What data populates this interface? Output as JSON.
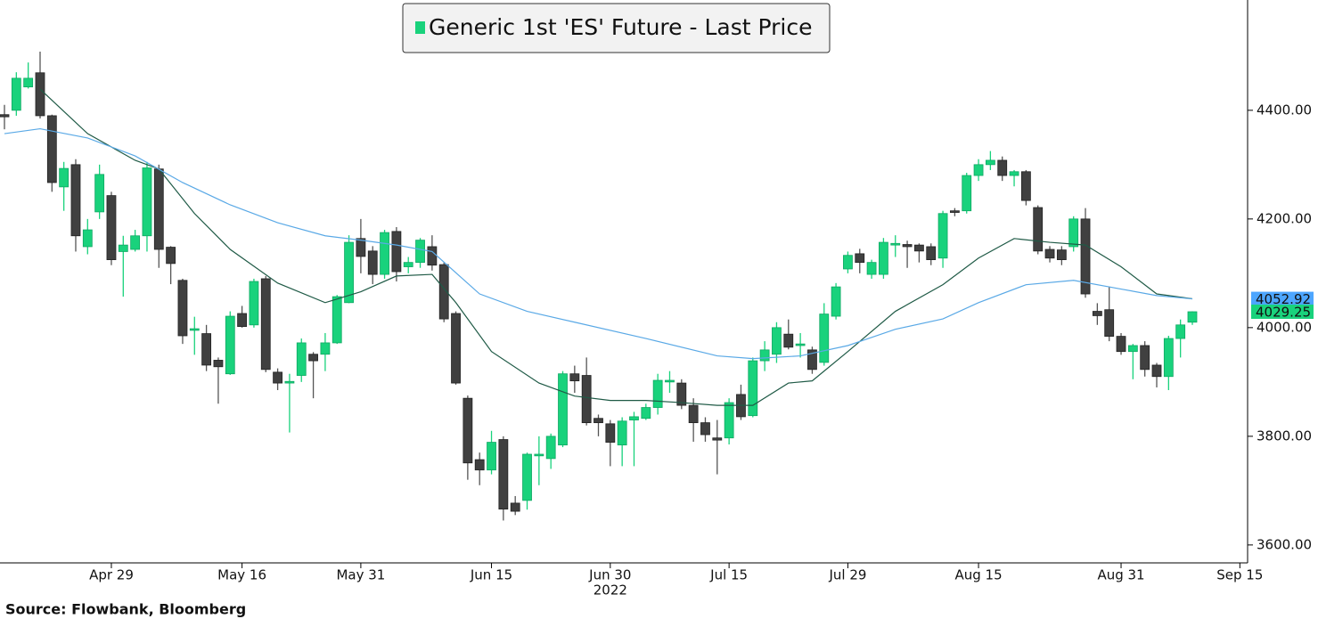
{
  "chart_data": {
    "type": "candlestick",
    "legend": "Generic 1st 'ES' Future - Last Price",
    "source": "Source: Flowbank, Bloomberg",
    "year_label": "2022",
    "up_color": "#19d27c",
    "down_color": "#404040",
    "x": [
      "2022-04-18",
      "2022-04-19",
      "2022-04-20",
      "2022-04-21",
      "2022-04-22",
      "2022-04-25",
      "2022-04-26",
      "2022-04-27",
      "2022-04-28",
      "2022-04-29",
      "2022-05-02",
      "2022-05-03",
      "2022-05-04",
      "2022-05-05",
      "2022-05-06",
      "2022-05-09",
      "2022-05-10",
      "2022-05-11",
      "2022-05-12",
      "2022-05-13",
      "2022-05-16",
      "2022-05-17",
      "2022-05-18",
      "2022-05-19",
      "2022-05-20",
      "2022-05-23",
      "2022-05-24",
      "2022-05-25",
      "2022-05-26",
      "2022-05-27",
      "2022-05-31",
      "2022-06-01",
      "2022-06-02",
      "2022-06-03",
      "2022-06-06",
      "2022-06-07",
      "2022-06-08",
      "2022-06-09",
      "2022-06-10",
      "2022-06-13",
      "2022-06-14",
      "2022-06-15",
      "2022-06-16",
      "2022-06-17",
      "2022-06-21",
      "2022-06-22",
      "2022-06-23",
      "2022-06-24",
      "2022-06-27",
      "2022-06-28",
      "2022-06-29",
      "2022-06-30",
      "2022-07-01",
      "2022-07-05",
      "2022-07-06",
      "2022-07-07",
      "2022-07-08",
      "2022-07-11",
      "2022-07-12",
      "2022-07-13",
      "2022-07-14",
      "2022-07-15",
      "2022-07-18",
      "2022-07-19",
      "2022-07-20",
      "2022-07-21",
      "2022-07-22",
      "2022-07-25",
      "2022-07-26",
      "2022-07-27",
      "2022-07-28",
      "2022-07-29",
      "2022-08-01",
      "2022-08-02",
      "2022-08-03",
      "2022-08-04",
      "2022-08-05",
      "2022-08-08",
      "2022-08-09",
      "2022-08-10",
      "2022-08-11",
      "2022-08-12",
      "2022-08-15",
      "2022-08-16",
      "2022-08-17",
      "2022-08-18",
      "2022-08-19",
      "2022-08-22",
      "2022-08-23",
      "2022-08-24",
      "2022-08-25",
      "2022-08-26",
      "2022-08-29",
      "2022-08-30",
      "2022-08-31",
      "2022-09-01",
      "2022-09-02",
      "2022-09-06",
      "2022-09-07",
      "2022-09-08",
      "2022-09-09"
    ],
    "open": [
      4392,
      4400,
      4443,
      4469,
      4390,
      4259,
      4300,
      4149,
      4213,
      4243,
      4140,
      4144,
      4169,
      4292,
      4148,
      4087,
      3995,
      3989,
      3940,
      3915,
      4026,
      4005,
      4090,
      3918,
      3898,
      3912,
      3951,
      3951,
      3972,
      4046,
      4164,
      4141,
      4098,
      4177,
      4112,
      4120,
      4149,
      4116,
      4026,
      3870,
      3757,
      3738,
      3794,
      3677,
      3682,
      3764,
      3759,
      3784,
      3915,
      3912,
      3833,
      3823,
      3784,
      3830,
      3833,
      3853,
      3900,
      3898,
      3857,
      3825,
      3797,
      3797,
      3877,
      3838,
      3939,
      3951,
      3988,
      3967,
      3959,
      3936,
      4021,
      4108,
      4136,
      4098,
      4098,
      4152,
      4153,
      4152,
      4149,
      4128,
      4215,
      4215,
      4280,
      4300,
      4308,
      4280,
      4287,
      4221,
      4144,
      4143,
      4149,
      4200,
      4030,
      4033,
      3984,
      3956,
      3967,
      3931,
      3910,
      3980,
      4010
    ],
    "high": [
      4410,
      4470,
      4488,
      4508,
      4392,
      4305,
      4310,
      4200,
      4300,
      4250,
      4169,
      4180,
      4305,
      4300,
      4150,
      4090,
      4020,
      4005,
      3945,
      4030,
      4040,
      4090,
      4095,
      3925,
      3915,
      3980,
      3955,
      3990,
      4060,
      4170,
      4200,
      4150,
      4180,
      4185,
      4130,
      4165,
      4170,
      4120,
      4030,
      3875,
      3770,
      3810,
      3800,
      3690,
      3770,
      3800,
      3805,
      3920,
      3930,
      3945,
      3840,
      3830,
      3835,
      3845,
      3860,
      3915,
      3920,
      3905,
      3870,
      3835,
      3830,
      3870,
      3895,
      3945,
      3975,
      4010,
      4015,
      3990,
      3965,
      4045,
      4082,
      4140,
      4145,
      4125,
      4165,
      4170,
      4160,
      4155,
      4155,
      4215,
      4220,
      4285,
      4310,
      4325,
      4315,
      4290,
      4290,
      4225,
      4150,
      4150,
      4205,
      4220,
      4045,
      4075,
      3990,
      3970,
      3975,
      3935,
      3985,
      4015,
      4030
    ],
    "low": [
      4365,
      4390,
      4440,
      4385,
      4250,
      4215,
      4140,
      4135,
      4200,
      4115,
      4057,
      4140,
      4140,
      4110,
      4080,
      3970,
      3950,
      3920,
      3860,
      3913,
      4000,
      4000,
      3918,
      3885,
      3807,
      3900,
      3870,
      3920,
      3970,
      4045,
      4100,
      4080,
      4090,
      4085,
      4100,
      4110,
      4105,
      4010,
      3895,
      3720,
      3710,
      3730,
      3645,
      3655,
      3665,
      3710,
      3740,
      3780,
      3880,
      3820,
      3800,
      3745,
      3745,
      3745,
      3830,
      3840,
      3880,
      3850,
      3790,
      3790,
      3730,
      3785,
      3830,
      3835,
      3920,
      3935,
      3960,
      3945,
      3915,
      3930,
      4015,
      4100,
      4100,
      4090,
      4090,
      4130,
      4110,
      4120,
      4115,
      4110,
      4205,
      4210,
      4270,
      4290,
      4270,
      4260,
      4225,
      4135,
      4120,
      4115,
      4140,
      4055,
      4005,
      3975,
      3950,
      3905,
      3910,
      3890,
      3885,
      3945,
      4005
    ],
    "close": [
      4388,
      4459,
      4459,
      4390,
      4267,
      4293,
      4169,
      4180,
      4282,
      4125,
      4152,
      4169,
      4294,
      4144,
      4118,
      3985,
      3998,
      3931,
      3928,
      4021,
      4002,
      4085,
      3923,
      3898,
      3901,
      3972,
      3939,
      3972,
      4057,
      4157,
      4131,
      4098,
      4175,
      4103,
      4120,
      4161,
      4115,
      4016,
      3898,
      3751,
      3738,
      3789,
      3666,
      3662,
      3767,
      3767,
      3800,
      3915,
      3902,
      3825,
      3825,
      3789,
      3828,
      3836,
      3853,
      3903,
      3903,
      3857,
      3825,
      3803,
      3793,
      3862,
      3836,
      3939,
      3959,
      4000,
      3964,
      3970,
      3923,
      4025,
      4075,
      4133,
      4120,
      4120,
      4157,
      4155,
      4149,
      4141,
      4125,
      4210,
      4212,
      4280,
      4300,
      4308,
      4280,
      4287,
      4234,
      4141,
      4128,
      4125,
      4200,
      4062,
      4022,
      3984,
      3956,
      3967,
      3923,
      3910,
      3980,
      4005,
      4029.25
    ],
    "series": [
      {
        "color": "#1f5a46",
        "x": [
          "2022-04-21",
          "2022-04-27",
          "2022-05-03",
          "2022-05-05",
          "2022-05-10",
          "2022-05-13",
          "2022-05-19",
          "2022-05-25",
          "2022-05-31",
          "2022-06-03",
          "2022-06-08",
          "2022-06-10",
          "2022-06-15",
          "2022-06-22",
          "2022-06-27",
          "2022-06-30",
          "2022-07-06",
          "2022-07-11",
          "2022-07-14",
          "2022-07-19",
          "2022-07-22",
          "2022-07-26",
          "2022-07-29",
          "2022-08-04",
          "2022-08-10",
          "2022-08-15",
          "2022-08-18",
          "2022-08-23",
          "2022-08-26",
          "2022-08-31",
          "2022-09-06",
          "2022-09-09"
        ],
        "values": [
          4439,
          4357,
          4308,
          4292,
          4210,
          4144,
          4082,
          4046,
          4066,
          4095,
          4098,
          4046,
          3956,
          3898,
          3874,
          3866,
          3866,
          3862,
          3857,
          3857,
          3898,
          3902,
          3956,
          4030,
          4079,
          4128,
          4164,
          4157,
          4152,
          4112,
          4062,
          4053
        ]
      },
      {
        "color": "#5aa9e6",
        "x": [
          "2022-04-18",
          "2022-04-21",
          "2022-04-27",
          "2022-05-03",
          "2022-05-09",
          "2022-05-13",
          "2022-05-19",
          "2022-05-25",
          "2022-05-31",
          "2022-06-03",
          "2022-06-08",
          "2022-06-14",
          "2022-06-21",
          "2022-06-27",
          "2022-07-06",
          "2022-07-14",
          "2022-07-19",
          "2022-07-25",
          "2022-07-29",
          "2022-08-04",
          "2022-08-10",
          "2022-08-15",
          "2022-08-19",
          "2022-08-25",
          "2022-08-31",
          "2022-09-06",
          "2022-09-09"
        ],
        "values": [
          4357,
          4366,
          4349,
          4316,
          4267,
          4226,
          4193,
          4169,
          4161,
          4152,
          4140,
          4062,
          4030,
          4010,
          3980,
          3948,
          3943,
          3948,
          3967,
          3997,
          4016,
          4046,
          4079,
          4087,
          4071,
          4059,
          4052.92
        ]
      }
    ],
    "markers": [
      {
        "value": 4052.92,
        "color": "#4da6ff"
      },
      {
        "value": 4029.25,
        "color": "#19d27c"
      }
    ],
    "ylim": [
      3567,
      4603
    ],
    "yticks": [
      {
        "value": 3600,
        "label": "3600.00"
      },
      {
        "value": 3800,
        "label": "3800.00"
      },
      {
        "value": 4000,
        "label": "4000.00"
      },
      {
        "value": 4200,
        "label": "4200.00"
      },
      {
        "value": 4400,
        "label": "4400.00"
      }
    ],
    "xticks": [
      {
        "value": "2022-04-29",
        "label": "Apr 29"
      },
      {
        "value": "2022-05-16",
        "label": "May 16"
      },
      {
        "value": "2022-05-31",
        "label": "May 31"
      },
      {
        "value": "2022-06-15",
        "label": "Jun 15"
      },
      {
        "value": "2022-06-30",
        "label": "Jun 30"
      },
      {
        "value": "2022-07-15",
        "label": "Jul 15"
      },
      {
        "value": "2022-07-29",
        "label": "Jul 29"
      },
      {
        "value": "2022-08-15",
        "label": "Aug 15"
      },
      {
        "value": "2022-08-31",
        "label": "Aug 31"
      },
      {
        "value": "2022-09-15",
        "label": "Sep 15"
      }
    ]
  }
}
